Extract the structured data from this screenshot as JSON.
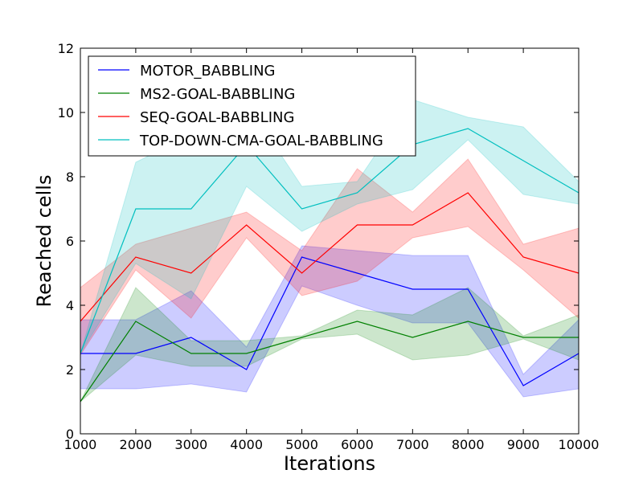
{
  "chart_data": {
    "type": "line",
    "xlabel": "Iterations",
    "ylabel": "Reached cells",
    "xlim": [
      1000,
      10000
    ],
    "ylim": [
      0,
      12
    ],
    "x": [
      1000,
      2000,
      3000,
      4000,
      5000,
      6000,
      7000,
      8000,
      9000,
      10000
    ],
    "xticks": [
      "1000",
      "2000",
      "3000",
      "4000",
      "5000",
      "6000",
      "7000",
      "8000",
      "9000",
      "10000"
    ],
    "yticks": [
      "0",
      "2",
      "4",
      "6",
      "8",
      "10",
      "12"
    ],
    "legend_position": "top-left",
    "series": [
      {
        "name": "MOTOR_BABBLING",
        "color": "#0000ff",
        "values": [
          2.5,
          2.5,
          3.0,
          2.0,
          5.5,
          5.0,
          4.5,
          4.5,
          1.5,
          2.5
        ],
        "lower": [
          1.4,
          1.4,
          1.55,
          1.3,
          4.6,
          4.0,
          3.45,
          3.45,
          1.15,
          1.4
        ],
        "upper": [
          3.55,
          3.55,
          4.45,
          2.7,
          5.85,
          5.7,
          5.55,
          5.55,
          1.85,
          3.55
        ]
      },
      {
        "name": "MS2-GOAL-BABBLING",
        "color": "#008000",
        "values": [
          1.0,
          3.5,
          2.5,
          2.5,
          3.0,
          3.5,
          3.0,
          3.5,
          3.0,
          3.0
        ],
        "lower": [
          1.0,
          2.45,
          2.1,
          2.1,
          2.95,
          3.1,
          2.3,
          2.45,
          2.95,
          2.3
        ],
        "upper": [
          1.0,
          4.55,
          2.9,
          2.9,
          3.05,
          3.85,
          3.7,
          4.55,
          3.05,
          3.7
        ]
      },
      {
        "name": "SEQ-GOAL-BABBLING",
        "color": "#ff0000",
        "values": [
          3.5,
          5.5,
          5.0,
          6.5,
          5.0,
          6.5,
          6.5,
          7.5,
          5.5,
          5.0
        ],
        "lower": [
          2.45,
          5.1,
          3.6,
          6.1,
          4.3,
          4.75,
          6.1,
          6.45,
          5.1,
          3.6
        ],
        "upper": [
          4.55,
          5.9,
          6.4,
          6.9,
          5.7,
          8.25,
          6.9,
          8.55,
          5.9,
          6.4
        ]
      },
      {
        "name": "TOP-DOWN-CMA-GOAL-BABBLING",
        "color": "#00bfbf",
        "values": [
          2.5,
          7.0,
          7.0,
          9.0,
          7.0,
          7.5,
          9.0,
          9.5,
          8.5,
          7.5
        ],
        "lower": [
          2.5,
          5.3,
          4.2,
          7.7,
          6.3,
          7.15,
          7.6,
          9.15,
          7.45,
          7.15
        ],
        "upper": [
          2.5,
          8.45,
          9.3,
          10.3,
          7.7,
          7.85,
          10.4,
          9.85,
          9.55,
          7.85
        ]
      }
    ]
  }
}
